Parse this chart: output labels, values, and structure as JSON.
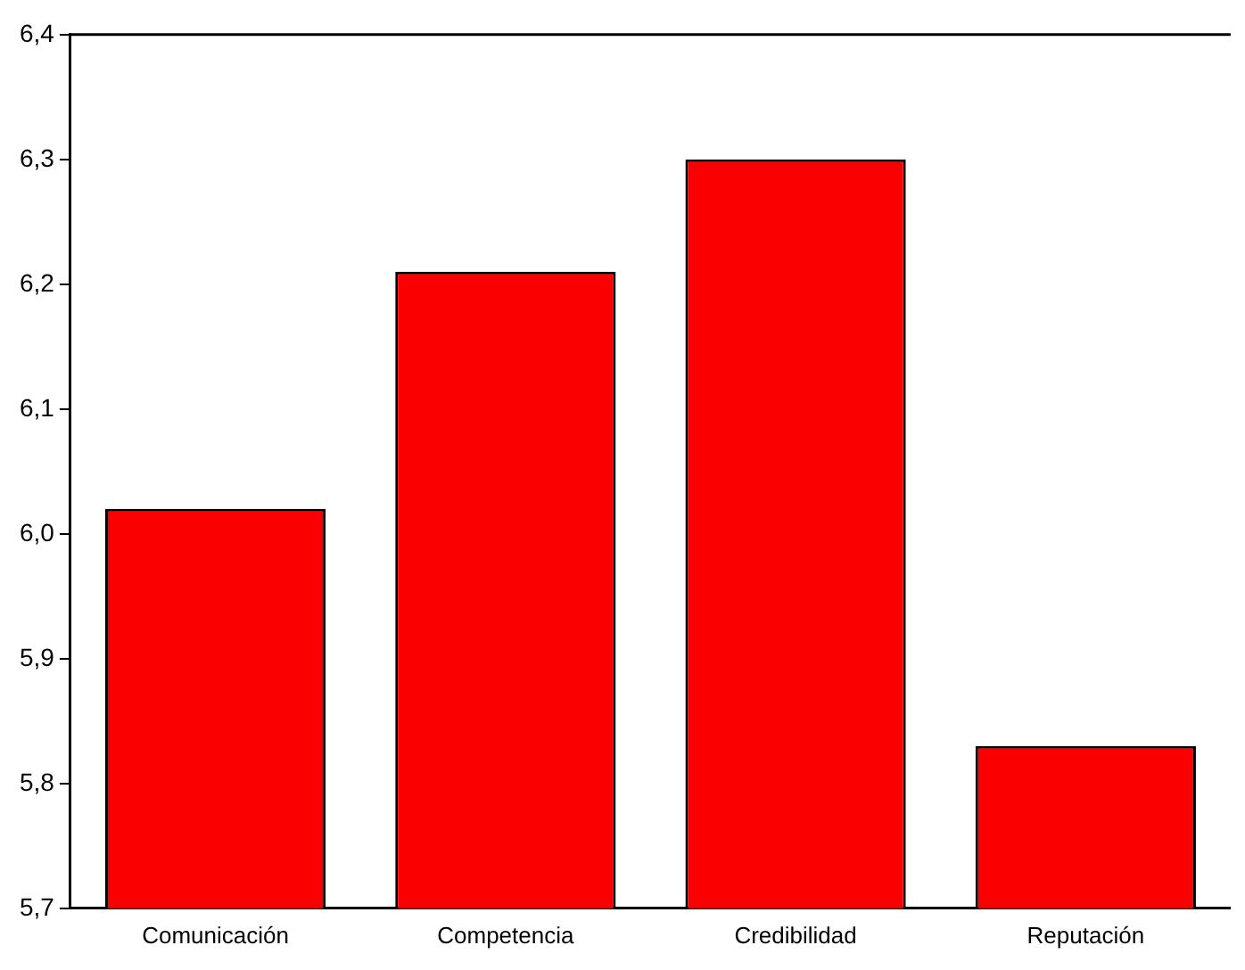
{
  "chart_data": {
    "type": "bar",
    "categories": [
      "Comunicación",
      "Competencia",
      "Credibilidad",
      "Reputación"
    ],
    "values": [
      6.02,
      6.21,
      6.3,
      5.83
    ],
    "color": "#fa0000",
    "ylim": [
      5.7,
      6.4
    ],
    "yticks": [
      {
        "value": 5.7,
        "label": "5,7"
      },
      {
        "value": 5.8,
        "label": "5,8"
      },
      {
        "value": 5.9,
        "label": "5,9"
      },
      {
        "value": 6.0,
        "label": "6,0"
      },
      {
        "value": 6.1,
        "label": "6,1"
      },
      {
        "value": 6.2,
        "label": "6,2"
      },
      {
        "value": 6.3,
        "label": "6,3"
      },
      {
        "value": 6.4,
        "label": "6,4"
      }
    ],
    "grid": false,
    "legend": false
  }
}
